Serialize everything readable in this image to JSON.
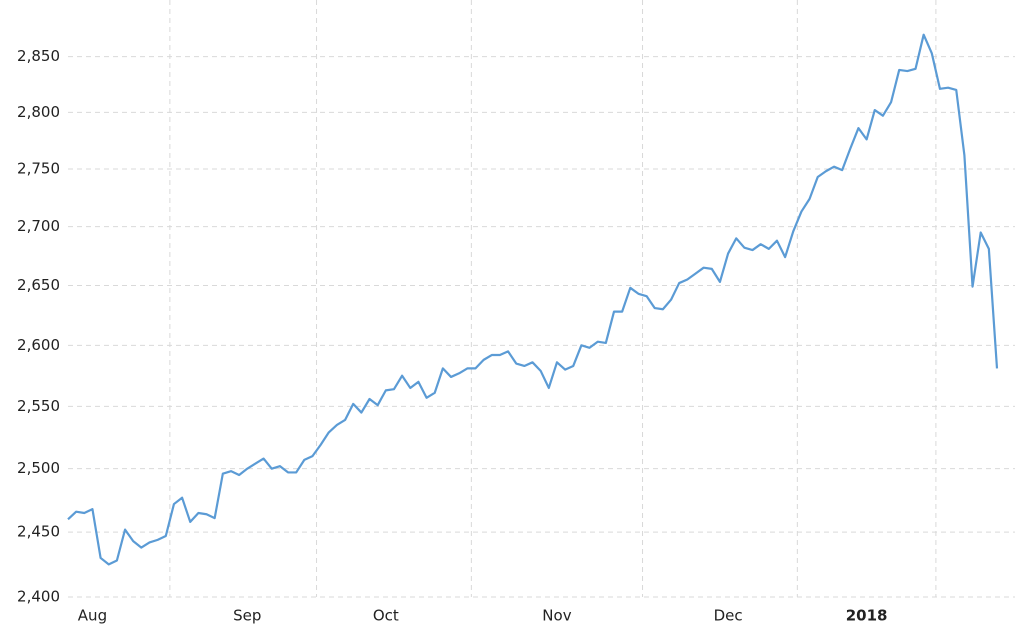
{
  "chart_data": {
    "type": "line",
    "categories": [
      null,
      null,
      null,
      "Aug",
      null,
      null,
      null,
      null,
      null,
      null,
      null,
      null,
      null,
      null,
      null,
      null,
      null,
      null,
      null,
      null,
      null,
      null,
      "Sep",
      null,
      null,
      null,
      null,
      null,
      null,
      null,
      null,
      null,
      null,
      null,
      null,
      null,
      null,
      null,
      null,
      "Oct",
      null,
      null,
      null,
      null,
      null,
      null,
      null,
      null,
      null,
      null,
      null,
      null,
      null,
      null,
      null,
      null,
      null,
      null,
      null,
      null,
      "Nov",
      null,
      null,
      null,
      null,
      null,
      null,
      null,
      null,
      null,
      null,
      null,
      null,
      null,
      null,
      null,
      null,
      null,
      null,
      null,
      null,
      "Dec",
      null,
      null,
      null,
      null,
      null,
      null,
      null,
      null,
      null,
      null,
      null,
      null,
      null,
      null,
      null,
      null,
      "2018",
      null,
      null,
      null,
      null,
      null,
      null,
      null,
      null,
      null,
      null,
      null,
      null,
      null,
      null,
      null,
      null
    ],
    "series": [
      {
        "color": "#5b9bd5",
        "values": [
          2460,
          2466,
          2465,
          2468,
          2430,
          2425,
          2428,
          2452,
          2443,
          2438,
          2442,
          2444,
          2447,
          2472,
          2477,
          2458,
          2465,
          2464,
          2461,
          2496,
          2498,
          2495,
          2500,
          2504,
          2508,
          2500,
          2502,
          2497,
          2497,
          2507,
          2510,
          2519,
          2529,
          2535,
          2539,
          2552,
          2545,
          2556,
          2551,
          2563,
          2564,
          2575,
          2565,
          2570,
          2557,
          2561,
          2581,
          2574,
          2577,
          2581,
          2581,
          2588,
          2592,
          2592,
          2595,
          2585,
          2583,
          2586,
          2579,
          2565,
          2586,
          2580,
          2583,
          2600,
          2598,
          2603,
          2602,
          2628,
          2628,
          2648,
          2643,
          2641,
          2631,
          2630,
          2638,
          2652,
          2655,
          2660,
          2665,
          2664,
          2653,
          2677,
          2690,
          2682,
          2680,
          2685,
          2681,
          2688,
          2674,
          2696,
          2713,
          2724,
          2743,
          2748,
          2752,
          2749,
          2768,
          2786,
          2776,
          2802,
          2797,
          2809,
          2838,
          2837,
          2839,
          2870,
          2853,
          2821,
          2822,
          2820,
          2762,
          2649,
          2695,
          2681,
          2581
        ]
      }
    ],
    "ylim": [
      2400,
      2900
    ],
    "log_y": true,
    "yticks": [
      {
        "value": 2400,
        "label": "2,400"
      },
      {
        "value": 2450,
        "label": "2,450"
      },
      {
        "value": 2500,
        "label": "2,500"
      },
      {
        "value": 2550,
        "label": "2,550"
      },
      {
        "value": 2600,
        "label": "2,600"
      },
      {
        "value": 2650,
        "label": "2,650"
      },
      {
        "value": 2700,
        "label": "2,700"
      },
      {
        "value": 2750,
        "label": "2,750"
      },
      {
        "value": 2800,
        "label": "2,800"
      },
      {
        "value": 2850,
        "label": "2,850"
      }
    ],
    "grid": true
  }
}
